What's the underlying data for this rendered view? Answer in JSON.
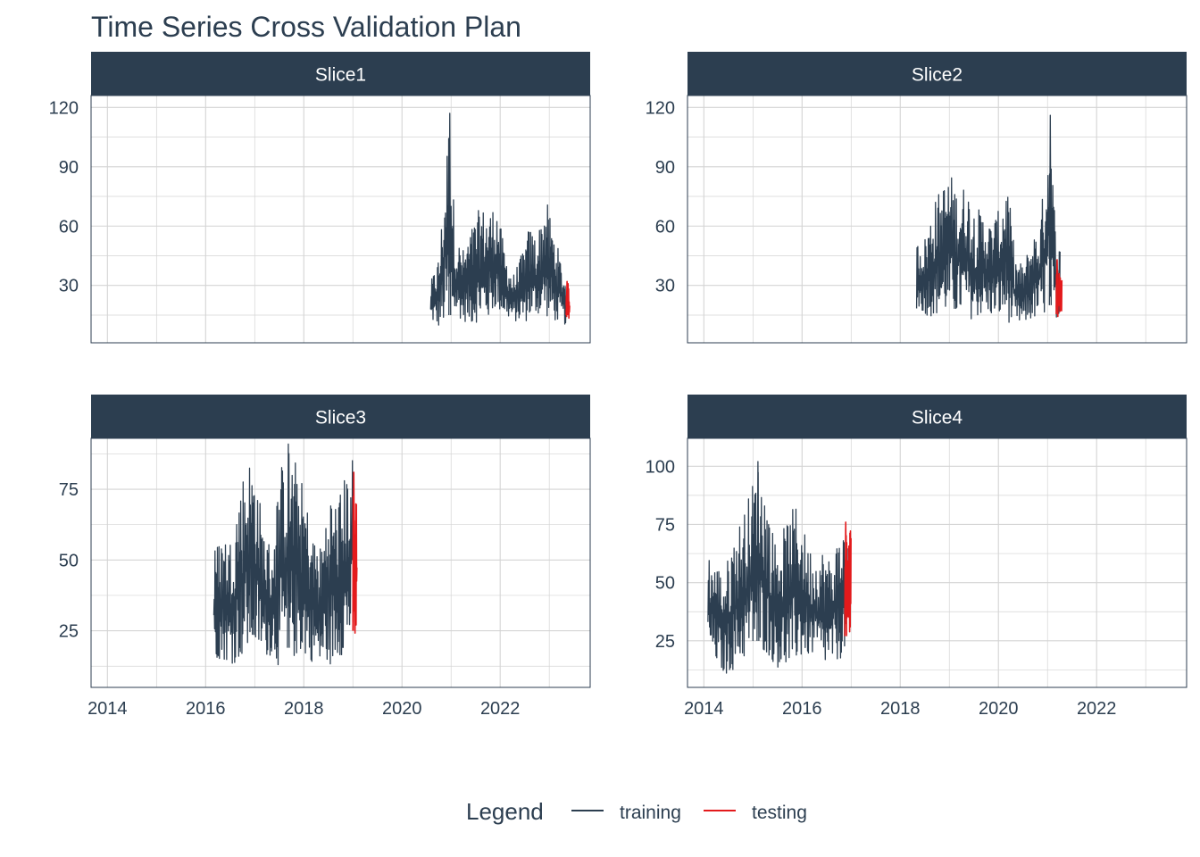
{
  "title": "Time Series Cross Validation Plan",
  "chart_data": {
    "type": "line",
    "title": "Time Series Cross Validation Plan",
    "xlabel": "",
    "ylabel": "",
    "x_ticks": [
      "2014",
      "2016",
      "2018",
      "2020",
      "2022"
    ],
    "xlim": [
      "2013-09-01",
      "2023-11-01"
    ],
    "grid": true,
    "legend_position": "bottom",
    "legend": {
      "title": "Legend",
      "entries": [
        {
          "name": "training",
          "color": "#2c3e50"
        },
        {
          "name": "testing",
          "color": "#e31a1c"
        }
      ]
    },
    "colors": {
      "training": "#2c3e50",
      "testing": "#e31a1c",
      "strip": "#2c3e50",
      "grid": "#d4d4d4"
    },
    "panels": [
      {
        "label": "Slice1",
        "y_ticks": [
          30,
          60,
          90,
          120
        ],
        "ylim": [
          1,
          126
        ],
        "series": [
          {
            "name": "training",
            "x": [
              "2020-08-01",
              "2020-10-01",
              "2020-12-15",
              "2021-02-01",
              "2021-04-01",
              "2021-06-01",
              "2021-08-01",
              "2021-10-01",
              "2021-12-01",
              "2022-02-01",
              "2022-04-01",
              "2022-06-01",
              "2022-08-01",
              "2022-10-01",
              "2022-12-01",
              "2023-02-01",
              "2023-05-01"
            ],
            "low": [
              12,
              8,
              10,
              15,
              12,
              10,
              12,
              12,
              18,
              14,
              12,
              11,
              12,
              15,
              14,
              12,
              10
            ],
            "high": [
              32,
              46,
              117,
              55,
              48,
              60,
              70,
              68,
              72,
              48,
              35,
              45,
              60,
              55,
              75,
              58,
              32
            ]
          },
          {
            "name": "testing",
            "x": [
              "2023-05-05",
              "2023-06-01"
            ],
            "low": [
              10,
              10
            ],
            "high": [
              32,
              30
            ]
          }
        ]
      },
      {
        "label": "Slice2",
        "y_ticks": [
          30,
          60,
          90,
          120
        ],
        "ylim": [
          1,
          126
        ],
        "series": [
          {
            "name": "training",
            "x": [
              "2018-05-01",
              "2018-07-01",
              "2018-09-01",
              "2018-11-01",
              "2019-01-01",
              "2019-03-01",
              "2019-05-01",
              "2019-07-01",
              "2019-09-01",
              "2019-11-01",
              "2020-01-01",
              "2020-03-01",
              "2020-05-01",
              "2020-07-01",
              "2020-09-01",
              "2020-11-01",
              "2021-01-15",
              "2021-03-01",
              "2021-04-01"
            ],
            "low": [
              18,
              15,
              14,
              15,
              15,
              14,
              15,
              12,
              15,
              14,
              13,
              12,
              9,
              10,
              12,
              13,
              15,
              14,
              14
            ],
            "high": [
              52,
              55,
              72,
              80,
              88,
              78,
              82,
              70,
              68,
              62,
              68,
              85,
              45,
              40,
              55,
              60,
              116,
              55,
              50
            ]
          },
          {
            "name": "testing",
            "x": [
              "2021-03-05",
              "2021-04-15"
            ],
            "low": [
              14,
              14
            ],
            "high": [
              43,
              38
            ]
          }
        ]
      },
      {
        "label": "Slice3",
        "y_ticks": [
          25,
          50,
          75
        ],
        "ylim": [
          5,
          93
        ],
        "series": [
          {
            "name": "training",
            "x": [
              "2016-03-01",
              "2016-05-01",
              "2016-07-01",
              "2016-09-01",
              "2016-11-01",
              "2017-01-01",
              "2017-03-01",
              "2017-05-01",
              "2017-07-01",
              "2017-09-01",
              "2017-11-01",
              "2018-01-01",
              "2018-03-01",
              "2018-05-01",
              "2018-07-01",
              "2018-09-01",
              "2018-11-01",
              "2019-01-01"
            ],
            "low": [
              15,
              15,
              13,
              14,
              16,
              18,
              16,
              16,
              12,
              14,
              15,
              16,
              14,
              12,
              12,
              14,
              18,
              22
            ],
            "high": [
              54,
              60,
              58,
              75,
              87,
              85,
              62,
              55,
              82,
              91,
              85,
              75,
              60,
              55,
              75,
              72,
              80,
              88
            ]
          },
          {
            "name": "testing",
            "x": [
              "2019-01-01",
              "2019-02-01"
            ],
            "low": [
              20,
              19
            ],
            "high": [
              81,
              78
            ]
          }
        ]
      },
      {
        "label": "Slice4",
        "y_ticks": [
          25,
          50,
          75,
          100
        ],
        "ylim": [
          5,
          112
        ],
        "series": [
          {
            "name": "training",
            "x": [
              "2014-02-01",
              "2014-04-01",
              "2014-06-01",
              "2014-08-01",
              "2014-10-01",
              "2014-12-01",
              "2015-02-01",
              "2015-04-01",
              "2015-06-01",
              "2015-08-01",
              "2015-10-01",
              "2015-12-01",
              "2016-02-01",
              "2016-04-01",
              "2016-06-01",
              "2016-08-01",
              "2016-10-01",
              "2016-12-01"
            ],
            "low": [
              22,
              15,
              10,
              12,
              15,
              18,
              20,
              20,
              15,
              12,
              12,
              16,
              18,
              18,
              14,
              14,
              16,
              22
            ],
            "high": [
              63,
              58,
              55,
              70,
              78,
              88,
              102,
              90,
              70,
              72,
              80,
              85,
              68,
              62,
              65,
              60,
              72,
              75
            ]
          },
          {
            "name": "testing",
            "x": [
              "2016-11-15",
              "2016-12-31"
            ],
            "low": [
              22,
              22
            ],
            "high": [
              76,
              75
            ]
          }
        ]
      }
    ]
  }
}
